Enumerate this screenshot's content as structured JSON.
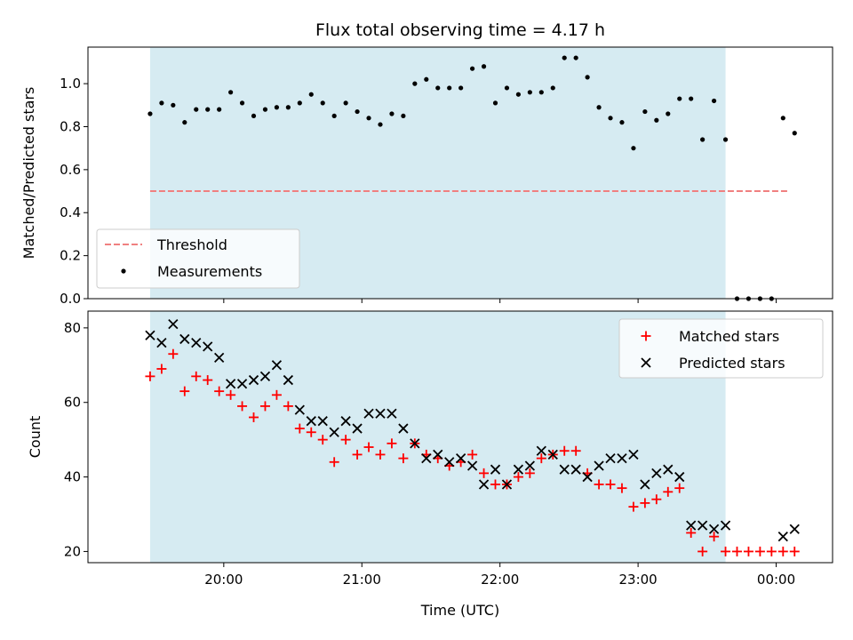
{
  "chart_data": [
    {
      "type": "scatter",
      "title": "Flux total observing time = 4.17 h",
      "xlabel": "",
      "ylabel": "Matched/Predicted stars",
      "ylim": [
        0,
        1.17
      ],
      "yticks": [
        "0.0",
        "0.2",
        "0.4",
        "0.6",
        "0.8",
        "1.0"
      ],
      "shaded_span": {
        "start": "19:28",
        "end": "23:38",
        "color": "#add8e6"
      },
      "threshold": {
        "name": "Threshold",
        "value": 0.5,
        "start": "19:28",
        "end": "00:05",
        "color": "#f08080"
      },
      "legend": {
        "placement": "lower-left",
        "entries": [
          "Threshold",
          "Measurements"
        ]
      },
      "series": [
        {
          "name": "Measurements",
          "color": "#000000",
          "marker": "dot",
          "points": [
            [
              "19:28",
              0.86
            ],
            [
              "19:33",
              0.91
            ],
            [
              "19:38",
              0.9
            ],
            [
              "19:43",
              0.82
            ],
            [
              "19:48",
              0.88
            ],
            [
              "19:53",
              0.88
            ],
            [
              "19:58",
              0.88
            ],
            [
              "20:03",
              0.96
            ],
            [
              "20:08",
              0.91
            ],
            [
              "20:13",
              0.85
            ],
            [
              "20:18",
              0.88
            ],
            [
              "20:23",
              0.89
            ],
            [
              "20:28",
              0.89
            ],
            [
              "20:33",
              0.91
            ],
            [
              "20:38",
              0.95
            ],
            [
              "20:43",
              0.91
            ],
            [
              "20:48",
              0.85
            ],
            [
              "20:53",
              0.91
            ],
            [
              "20:58",
              0.87
            ],
            [
              "21:03",
              0.84
            ],
            [
              "21:08",
              0.81
            ],
            [
              "21:13",
              0.86
            ],
            [
              "21:18",
              0.85
            ],
            [
              "21:23",
              1.0
            ],
            [
              "21:28",
              1.02
            ],
            [
              "21:33",
              0.98
            ],
            [
              "21:38",
              0.98
            ],
            [
              "21:43",
              0.98
            ],
            [
              "21:48",
              1.07
            ],
            [
              "21:53",
              1.08
            ],
            [
              "21:58",
              0.91
            ],
            [
              "22:03",
              0.98
            ],
            [
              "22:08",
              0.95
            ],
            [
              "22:13",
              0.96
            ],
            [
              "22:18",
              0.96
            ],
            [
              "22:23",
              0.98
            ],
            [
              "22:28",
              1.12
            ],
            [
              "22:33",
              1.12
            ],
            [
              "22:38",
              1.03
            ],
            [
              "22:43",
              0.89
            ],
            [
              "22:48",
              0.84
            ],
            [
              "22:53",
              0.82
            ],
            [
              "22:58",
              0.7
            ],
            [
              "23:03",
              0.87
            ],
            [
              "23:08",
              0.83
            ],
            [
              "23:13",
              0.86
            ],
            [
              "23:18",
              0.93
            ],
            [
              "23:23",
              0.93
            ],
            [
              "23:28",
              0.74
            ],
            [
              "23:33",
              0.92
            ],
            [
              "23:38",
              0.74
            ],
            [
              "23:43",
              0.0
            ],
            [
              "23:48",
              0.0
            ],
            [
              "23:53",
              0.0
            ],
            [
              "23:58",
              0.0
            ],
            [
              "00:03",
              0.84
            ],
            [
              "00:08",
              0.77
            ]
          ]
        }
      ]
    },
    {
      "type": "scatter",
      "title": "",
      "xlabel": "Time (UTC)",
      "ylabel": "Count",
      "ylim": [
        17,
        84.5
      ],
      "yticks": [
        "20",
        "40",
        "60",
        "80"
      ],
      "xticks": [
        "20:00",
        "21:00",
        "22:00",
        "23:00",
        "00:00"
      ],
      "shaded_span": {
        "start": "19:28",
        "end": "23:38",
        "color": "#add8e6"
      },
      "legend": {
        "placement": "upper-right",
        "entries": [
          "Matched stars",
          "Predicted stars"
        ]
      },
      "series": [
        {
          "name": "Matched stars",
          "color": "#ff0000",
          "marker": "plus",
          "points": [
            [
              "19:28",
              67
            ],
            [
              "19:33",
              69
            ],
            [
              "19:38",
              73
            ],
            [
              "19:43",
              63
            ],
            [
              "19:48",
              67
            ],
            [
              "19:53",
              66
            ],
            [
              "19:58",
              63
            ],
            [
              "20:03",
              62
            ],
            [
              "20:08",
              59
            ],
            [
              "20:13",
              56
            ],
            [
              "20:18",
              59
            ],
            [
              "20:23",
              62
            ],
            [
              "20:28",
              59
            ],
            [
              "20:33",
              53
            ],
            [
              "20:38",
              52
            ],
            [
              "20:43",
              50
            ],
            [
              "20:48",
              44
            ],
            [
              "20:53",
              50
            ],
            [
              "20:58",
              46
            ],
            [
              "21:03",
              48
            ],
            [
              "21:08",
              46
            ],
            [
              "21:13",
              49
            ],
            [
              "21:18",
              45
            ],
            [
              "21:23",
              49
            ],
            [
              "21:28",
              46
            ],
            [
              "21:33",
              45
            ],
            [
              "21:38",
              43
            ],
            [
              "21:43",
              44
            ],
            [
              "21:48",
              46
            ],
            [
              "21:53",
              41
            ],
            [
              "21:58",
              38
            ],
            [
              "22:03",
              38
            ],
            [
              "22:08",
              40
            ],
            [
              "22:13",
              41
            ],
            [
              "22:18",
              45
            ],
            [
              "22:23",
              46
            ],
            [
              "22:28",
              47
            ],
            [
              "22:33",
              47
            ],
            [
              "22:38",
              41
            ],
            [
              "22:43",
              38
            ],
            [
              "22:48",
              38
            ],
            [
              "22:53",
              37
            ],
            [
              "22:58",
              32
            ],
            [
              "23:03",
              33
            ],
            [
              "23:08",
              34
            ],
            [
              "23:13",
              36
            ],
            [
              "23:18",
              37
            ],
            [
              "23:23",
              25
            ],
            [
              "23:28",
              20
            ],
            [
              "23:33",
              24
            ],
            [
              "23:38",
              20
            ],
            [
              "23:43",
              20
            ],
            [
              "23:48",
              20
            ],
            [
              "23:53",
              20
            ],
            [
              "23:58",
              20
            ],
            [
              "00:03",
              20
            ],
            [
              "00:08",
              20
            ]
          ]
        },
        {
          "name": "Predicted stars",
          "color": "#000000",
          "marker": "x",
          "points": [
            [
              "19:28",
              78
            ],
            [
              "19:33",
              76
            ],
            [
              "19:38",
              81
            ],
            [
              "19:43",
              77
            ],
            [
              "19:48",
              76
            ],
            [
              "19:53",
              75
            ],
            [
              "19:58",
              72
            ],
            [
              "20:03",
              65
            ],
            [
              "20:08",
              65
            ],
            [
              "20:13",
              66
            ],
            [
              "20:18",
              67
            ],
            [
              "20:23",
              70
            ],
            [
              "20:28",
              66
            ],
            [
              "20:33",
              58
            ],
            [
              "20:38",
              55
            ],
            [
              "20:43",
              55
            ],
            [
              "20:48",
              52
            ],
            [
              "20:53",
              55
            ],
            [
              "20:58",
              53
            ],
            [
              "21:03",
              57
            ],
            [
              "21:08",
              57
            ],
            [
              "21:13",
              57
            ],
            [
              "21:18",
              53
            ],
            [
              "21:23",
              49
            ],
            [
              "21:28",
              45
            ],
            [
              "21:33",
              46
            ],
            [
              "21:38",
              44
            ],
            [
              "21:43",
              45
            ],
            [
              "21:48",
              43
            ],
            [
              "21:53",
              38
            ],
            [
              "21:58",
              42
            ],
            [
              "22:03",
              38
            ],
            [
              "22:08",
              42
            ],
            [
              "22:13",
              43
            ],
            [
              "22:18",
              47
            ],
            [
              "22:23",
              46
            ],
            [
              "22:28",
              42
            ],
            [
              "22:33",
              42
            ],
            [
              "22:38",
              40
            ],
            [
              "22:43",
              43
            ],
            [
              "22:48",
              45
            ],
            [
              "22:53",
              45
            ],
            [
              "22:58",
              46
            ],
            [
              "23:03",
              38
            ],
            [
              "23:08",
              41
            ],
            [
              "23:13",
              42
            ],
            [
              "23:18",
              40
            ],
            [
              "23:23",
              27
            ],
            [
              "23:28",
              27
            ],
            [
              "23:33",
              26
            ],
            [
              "23:38",
              27
            ],
            [
              "00:03",
              24
            ],
            [
              "00:08",
              26
            ]
          ]
        }
      ]
    }
  ]
}
